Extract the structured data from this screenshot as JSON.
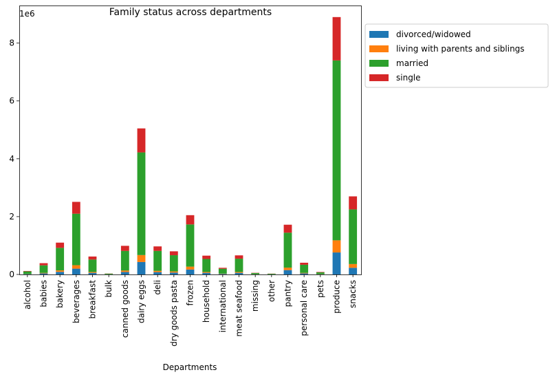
{
  "chart_data": {
    "type": "bar",
    "stacked": true,
    "title": "Family status across departments",
    "xlabel": "Departments",
    "ylabel": "",
    "y_offset_label": "1e6",
    "ylim": [
      0,
      9300000
    ],
    "yticks": [
      0,
      2000000,
      4000000,
      6000000,
      8000000
    ],
    "ytick_labels": [
      "0",
      "2",
      "4",
      "6",
      "8"
    ],
    "legend_position": "upper right, outside plot",
    "categories": [
      "alcohol",
      "babies",
      "bakery",
      "beverages",
      "breakfast",
      "bulk",
      "canned goods",
      "dairy eggs",
      "deli",
      "dry goods pasta",
      "frozen",
      "household",
      "international",
      "meat seafood",
      "missing",
      "other",
      "pantry",
      "personal care",
      "pets",
      "produce",
      "snacks"
    ],
    "series": [
      {
        "name": "divorced/widowed",
        "color": "#1f77b4",
        "values": [
          10000,
          35000,
          90000,
          200000,
          55000,
          3000,
          85000,
          430000,
          80000,
          65000,
          170000,
          55000,
          18000,
          55000,
          5000,
          3000,
          150000,
          35000,
          7000,
          760000,
          230000
        ]
      },
      {
        "name": "living with parents and siblings",
        "color": "#ff7f0e",
        "values": [
          5000,
          20000,
          50000,
          120000,
          30000,
          2000,
          50000,
          240000,
          45000,
          40000,
          100000,
          30000,
          10000,
          30000,
          3000,
          2000,
          85000,
          20000,
          4000,
          420000,
          130000
        ]
      },
      {
        "name": "married",
        "color": "#2ca02c",
        "values": [
          90000,
          260000,
          780000,
          1780000,
          430000,
          25000,
          680000,
          3550000,
          690000,
          560000,
          1460000,
          450000,
          170000,
          460000,
          40000,
          20000,
          1210000,
          280000,
          60000,
          6220000,
          1890000
        ]
      },
      {
        "name": "single",
        "color": "#d62728",
        "values": [
          15000,
          75000,
          180000,
          410000,
          105000,
          5000,
          175000,
          830000,
          155000,
          135000,
          320000,
          115000,
          32000,
          115000,
          8000,
          5000,
          275000,
          70000,
          14000,
          1500000,
          450000
        ]
      }
    ]
  }
}
